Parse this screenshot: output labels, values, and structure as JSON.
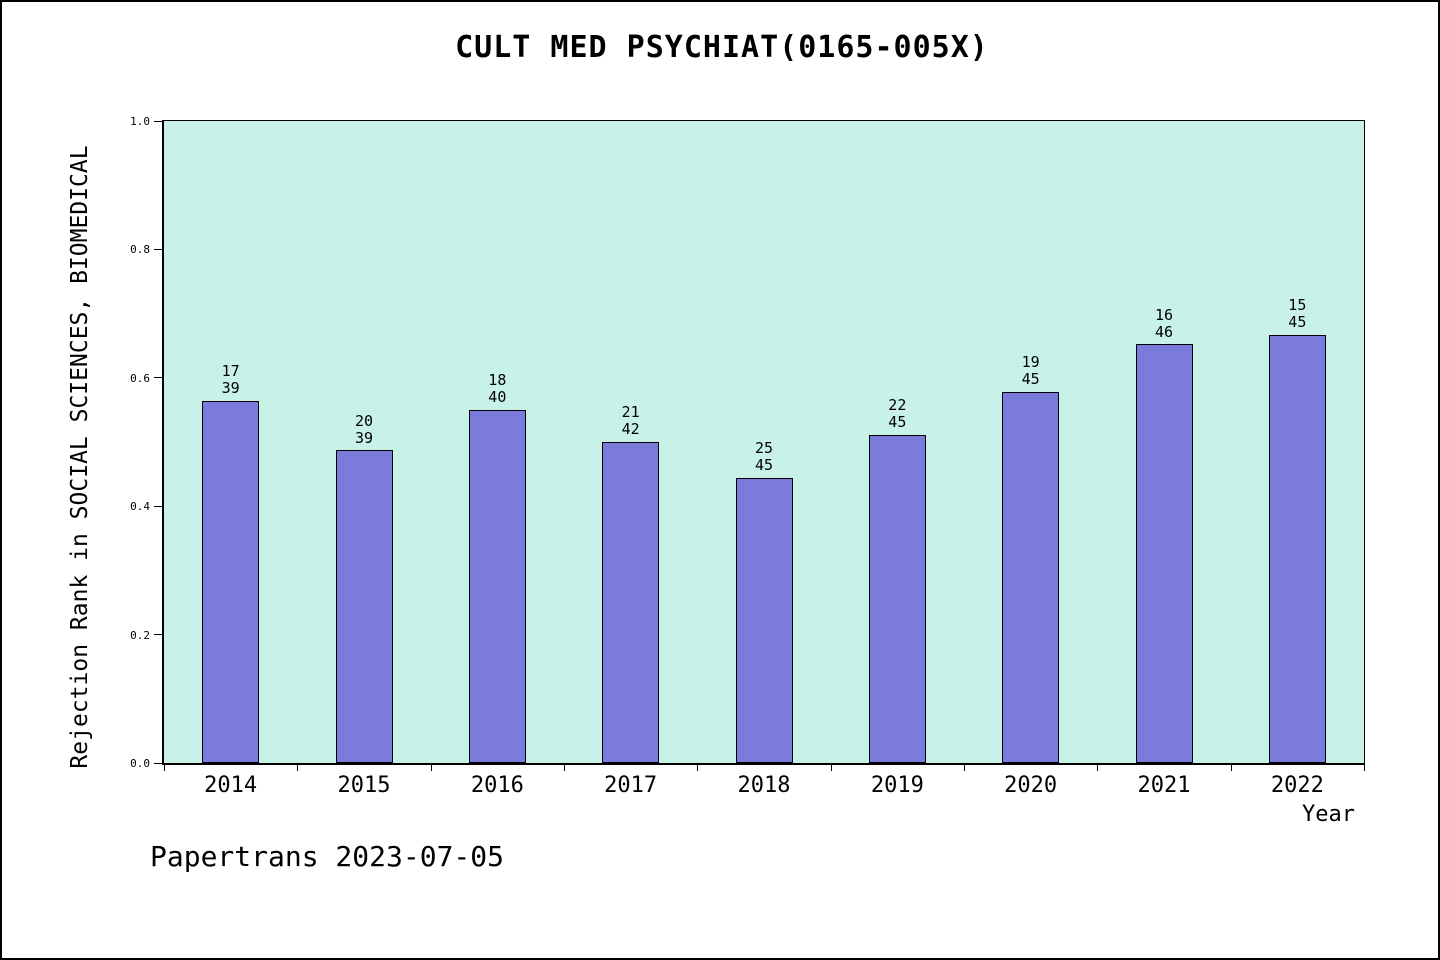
{
  "title": "CULT MED PSYCHIAT(0165-005X)",
  "footer": "Papertrans 2023-07-05",
  "chart_data": {
    "type": "bar",
    "title": "CULT MED PSYCHIAT(0165-005X)",
    "xlabel": "Year",
    "ylabel": "Rejection Rank in SOCIAL SCIENCES, BIOMEDICAL",
    "categories": [
      "2014",
      "2015",
      "2016",
      "2017",
      "2018",
      "2019",
      "2020",
      "2021",
      "2022"
    ],
    "values": [
      0.564,
      0.487,
      0.55,
      0.5,
      0.444,
      0.511,
      0.578,
      0.652,
      0.667
    ],
    "annotations": [
      [
        "17",
        "39"
      ],
      [
        "20",
        "39"
      ],
      [
        "18",
        "40"
      ],
      [
        "21",
        "42"
      ],
      [
        "25",
        "45"
      ],
      [
        "22",
        "45"
      ],
      [
        "19",
        "45"
      ],
      [
        "16",
        "46"
      ],
      [
        "15",
        "45"
      ]
    ],
    "ylim": [
      0.0,
      1.0
    ],
    "yticks": [
      0.0,
      0.2,
      0.4,
      0.6,
      0.8,
      1.0
    ],
    "grid": false,
    "legend": "none",
    "colors": {
      "bar_fill": "#7b7bdb",
      "bar_edge": "#000000",
      "plot_background": "#c8f2e8",
      "page_background": "#ffffff",
      "text": "#000000"
    }
  }
}
